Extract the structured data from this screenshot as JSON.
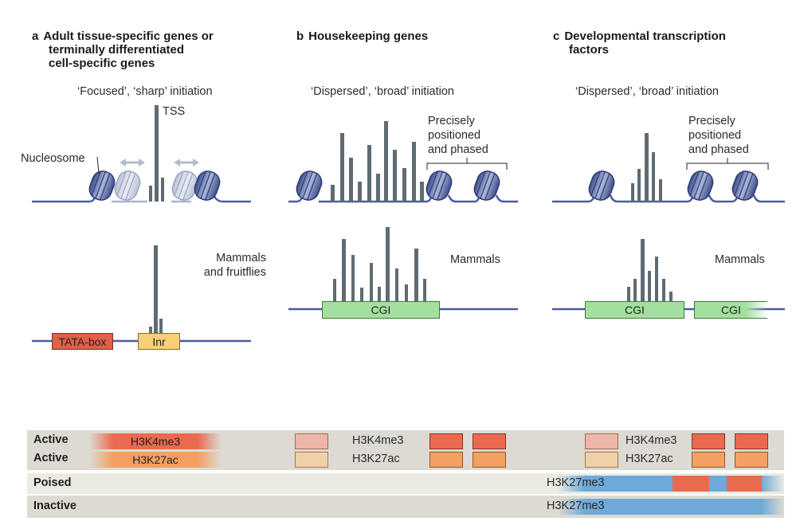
{
  "panels": [
    {
      "letter": "a",
      "title_lines": [
        "Adult tissue-specific genes or",
        "terminally differentiated",
        "cell-specific genes"
      ],
      "initiation": "‘Focused’, ‘sharp’ initiation",
      "tss": "TSS",
      "nucleosome": "Nucleosome",
      "species_lines": [
        "Mammals",
        "and fruitflies"
      ],
      "elements": [
        "TATA-box",
        "Inr"
      ]
    },
    {
      "letter": "b",
      "title_lines": [
        "Housekeeping genes"
      ],
      "initiation": "‘Dispersed’, ‘broad’ initiation",
      "positioned_lines": [
        "Precisely",
        "positioned",
        "and phased"
      ],
      "species": "Mammals",
      "cgi": "CGI"
    },
    {
      "letter": "c",
      "title_lines": [
        "Developmental transcription",
        "factors"
      ],
      "initiation": "‘Dispersed’, ‘broad’ initiation",
      "positioned_lines": [
        "Precisely",
        "positioned",
        "and phased"
      ],
      "species": "Mammals",
      "cgi": [
        "CGI",
        "CGI"
      ]
    }
  ],
  "chromatin_states": {
    "rows": [
      "Active",
      "Active",
      "Poised",
      "Inactive"
    ],
    "marks": {
      "h3k4me3": "H3K4me3",
      "h3k27ac": "H3K27ac",
      "h3k27me3": "H3K27me3"
    }
  },
  "colors": {
    "dna": "#4a5da0",
    "bar": "#5f6b73",
    "tata": "#e0604a",
    "inr": "#f7cf77",
    "cgi": "#a5dfa0",
    "h3k4me3": "#ea6a4f",
    "h3k27ac": "#f4a062",
    "h3k27me3": "#6ea9d9",
    "band_active": "#dcdad2",
    "band_poised": "#ebebe3"
  }
}
